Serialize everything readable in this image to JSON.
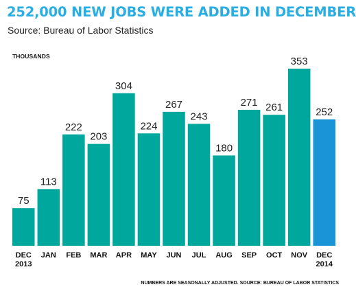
{
  "header": {
    "title": "252,000 NEW JOBS WERE ADDED IN DECEMBER",
    "subtitle": "Source: Bureau of Labor Statistics"
  },
  "unit_label": "THOUSANDS",
  "footnote": "NUMBERS ARE SEASONALLY ADJUSTED.  SOURCE: BUREAU OF LABOR STATISTICS",
  "colors": {
    "title": "#29aee3",
    "bar": "#00a79d",
    "highlight_bar": "#1b93d7"
  },
  "chart_data": {
    "type": "bar",
    "title": "252,000 NEW JOBS WERE ADDED IN DECEMBER",
    "ylabel": "THOUSANDS",
    "xlabel": "",
    "ylim": [
      0,
      353
    ],
    "grid": false,
    "legend": "none",
    "categories": [
      [
        "DEC",
        "2013"
      ],
      [
        "JAN"
      ],
      [
        "FEB"
      ],
      [
        "MAR"
      ],
      [
        "APR"
      ],
      [
        "MAY"
      ],
      [
        "JUN"
      ],
      [
        "JUL"
      ],
      [
        "AUG"
      ],
      [
        "SEP"
      ],
      [
        "OCT"
      ],
      [
        "NOV"
      ],
      [
        "DEC",
        "2014"
      ]
    ],
    "values": [
      75,
      113,
      222,
      203,
      304,
      224,
      267,
      243,
      180,
      271,
      261,
      353,
      252
    ],
    "highlight_index": 12
  }
}
